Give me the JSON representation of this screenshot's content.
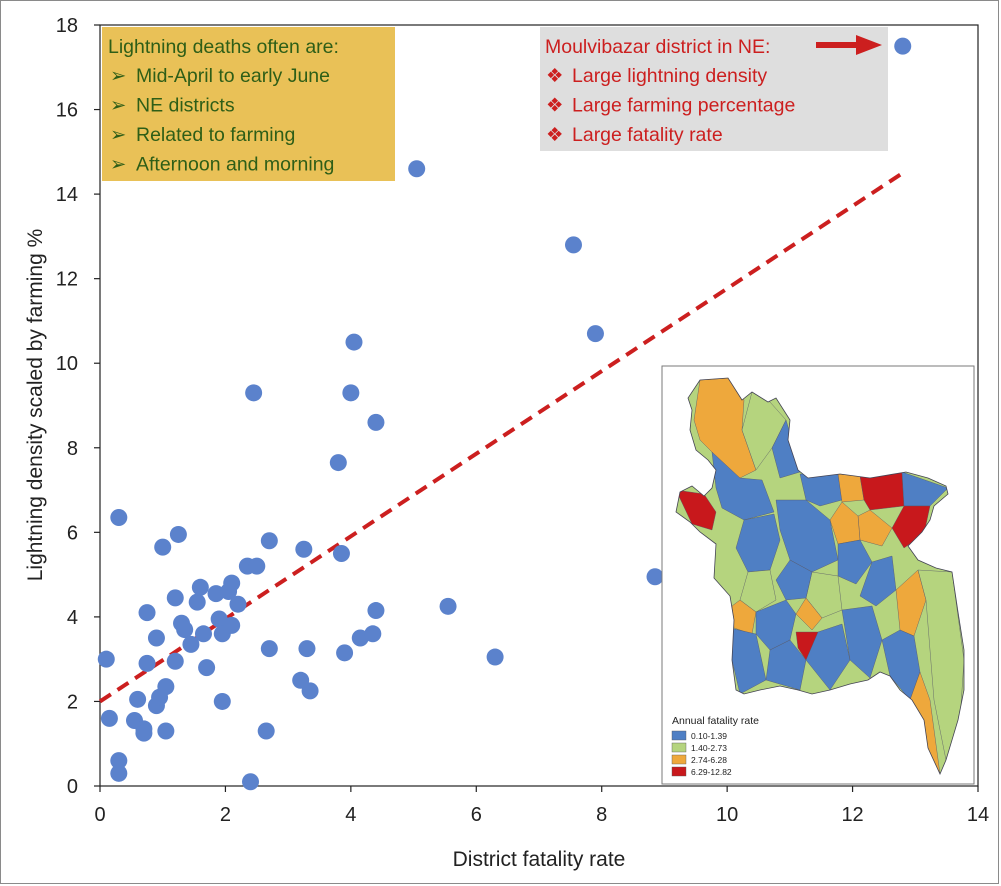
{
  "chart_data": {
    "type": "scatter",
    "xlabel": "District fatality rate",
    "ylabel": "Lightning density scaled by farming %",
    "xlim": [
      0,
      14
    ],
    "ylim": [
      0,
      18
    ],
    "x_ticks": [
      "0",
      "2",
      "4",
      "6",
      "8",
      "10",
      "12",
      "14"
    ],
    "y_ticks": [
      "0",
      "2",
      "4",
      "6",
      "8",
      "10",
      "12",
      "14",
      "16",
      "18"
    ],
    "grid": false,
    "point_color": "#5b82cc",
    "points": [
      [
        0.1,
        3.0
      ],
      [
        0.15,
        1.6
      ],
      [
        0.3,
        6.35
      ],
      [
        0.3,
        0.6
      ],
      [
        0.3,
        0.3
      ],
      [
        0.55,
        1.55
      ],
      [
        0.6,
        2.05
      ],
      [
        0.7,
        1.35
      ],
      [
        0.7,
        1.25
      ],
      [
        0.75,
        4.1
      ],
      [
        0.75,
        2.9
      ],
      [
        0.9,
        3.5
      ],
      [
        0.9,
        1.9
      ],
      [
        0.95,
        2.1
      ],
      [
        1.0,
        5.65
      ],
      [
        1.05,
        2.35
      ],
      [
        1.05,
        1.3
      ],
      [
        1.2,
        4.45
      ],
      [
        1.2,
        2.95
      ],
      [
        1.25,
        5.95
      ],
      [
        1.3,
        3.85
      ],
      [
        1.35,
        3.7
      ],
      [
        1.45,
        3.35
      ],
      [
        1.55,
        4.35
      ],
      [
        1.6,
        4.7
      ],
      [
        1.65,
        3.6
      ],
      [
        1.7,
        2.8
      ],
      [
        1.85,
        4.55
      ],
      [
        1.9,
        3.95
      ],
      [
        1.95,
        2.0
      ],
      [
        1.95,
        3.6
      ],
      [
        2.05,
        4.6
      ],
      [
        2.1,
        4.8
      ],
      [
        2.1,
        3.8
      ],
      [
        2.2,
        4.3
      ],
      [
        2.35,
        5.2
      ],
      [
        2.4,
        0.1
      ],
      [
        2.45,
        9.3
      ],
      [
        2.5,
        5.2
      ],
      [
        2.65,
        1.3
      ],
      [
        2.7,
        5.8
      ],
      [
        2.7,
        3.25
      ],
      [
        3.2,
        2.5
      ],
      [
        3.25,
        5.6
      ],
      [
        3.3,
        3.25
      ],
      [
        3.35,
        2.25
      ],
      [
        3.8,
        7.65
      ],
      [
        3.85,
        5.5
      ],
      [
        3.9,
        3.15
      ],
      [
        4.0,
        9.3
      ],
      [
        4.05,
        10.5
      ],
      [
        4.15,
        3.5
      ],
      [
        4.35,
        3.6
      ],
      [
        4.4,
        4.15
      ],
      [
        4.4,
        8.6
      ],
      [
        5.05,
        14.6
      ],
      [
        5.55,
        4.25
      ],
      [
        6.3,
        3.05
      ],
      [
        7.55,
        12.8
      ],
      [
        7.9,
        10.7
      ],
      [
        8.85,
        4.95
      ],
      [
        12.8,
        17.5
      ]
    ],
    "trendline": {
      "style": "dashed",
      "color": "#cc1f1f",
      "x": [
        0,
        12.8
      ],
      "y": [
        2.0,
        14.5
      ]
    },
    "annotations": {
      "left_box": {
        "title": "Lightning deaths often are:",
        "items": [
          "Mid-April to early June",
          "NE districts",
          "Related to farming",
          "Afternoon and morning"
        ],
        "bullet": "➢",
        "background": "#e9c157",
        "text_color": "#2e5e17"
      },
      "right_box": {
        "title": "Moulvibazar district in NE:",
        "items": [
          "Large lightning density",
          "Large farming percentage",
          "Large fatality rate"
        ],
        "bullet": "❖",
        "background": "#dedede",
        "text_color": "#cc1f1f",
        "arrow_color": "#cc1f1f"
      }
    },
    "inset_map": {
      "legend_title": "Annual fatality rate",
      "legend": [
        {
          "label": "0.10-1.39",
          "color": "#4f7fc4"
        },
        {
          "label": "1.40-2.73",
          "color": "#b5d47e"
        },
        {
          "label": "2.74-6.28",
          "color": "#eea83c"
        },
        {
          "label": "6.29-12.82",
          "color": "#c8181c"
        }
      ]
    }
  }
}
